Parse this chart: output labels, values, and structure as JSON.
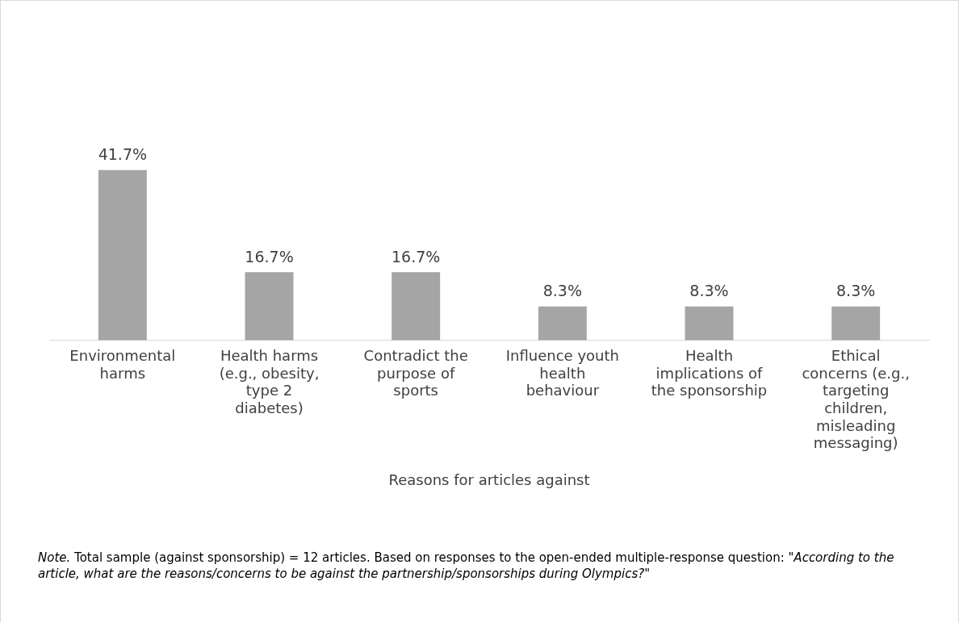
{
  "chart_data": {
    "type": "bar",
    "xlabel": "Reasons for articles against",
    "categories": [
      "Environmental harms",
      "Health harms (e.g., obesity, type 2 diabetes)",
      "Contradict the purpose of sports",
      "Influence youth health behaviour",
      "Health implications of the sponsorship",
      "Ethical concerns (e.g., targeting children, misleading messaging)"
    ],
    "values": [
      41.7,
      16.7,
      16.7,
      8.3,
      8.3,
      8.3
    ],
    "value_labels": [
      "41.7%",
      "16.7%",
      "16.7%",
      "8.3%",
      "8.3%",
      "8.3%"
    ],
    "color": "#a5a5a5",
    "tick_labels": "x",
    "grid": false,
    "legend": false,
    "annotations": [
      "Note.",
      "Total sample (against sponsorship) = 12 articles. Based on responses to the open-ended multiple-response question:",
      "\"According to the article, what are the reasons/concerns to be against the partnership/sponsorships during Olympics?\""
    ]
  }
}
